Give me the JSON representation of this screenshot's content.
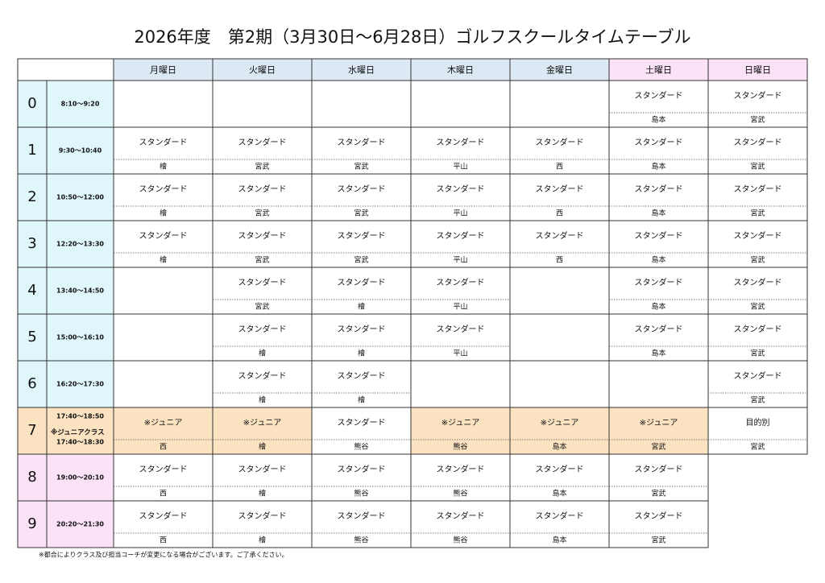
{
  "title": "2026年度　第2期（3月30日～6月28日）ゴルフスクールタイムテーブル",
  "days": [
    {
      "label": "月曜日",
      "color": "#dce9f5"
    },
    {
      "label": "火曜日",
      "color": "#dce9f5"
    },
    {
      "label": "水曜日",
      "color": "#dce9f5"
    },
    {
      "label": "木曜日",
      "color": "#dce9f5"
    },
    {
      "label": "金曜日",
      "color": "#dce9f5"
    },
    {
      "label": "土曜日",
      "color": "#fbe2f6"
    },
    {
      "label": "日曜日",
      "color": "#fbe2f6"
    }
  ],
  "rows": [
    {
      "period": "0",
      "time": "8:10～9:20",
      "color": "#dff6fb",
      "cells": [
        null,
        null,
        null,
        null,
        null,
        {
          "class": "スタンダード",
          "coach": "島本"
        },
        {
          "class": "スタンダード",
          "coach": "宮武"
        }
      ]
    },
    {
      "period": "1",
      "time": "9:30～10:40",
      "color": "#dff6fb",
      "cells": [
        {
          "class": "スタンダード",
          "coach": "檜"
        },
        {
          "class": "スタンダード",
          "coach": "宮武"
        },
        {
          "class": "スタンダード",
          "coach": "宮武"
        },
        {
          "class": "スタンダード",
          "coach": "平山"
        },
        {
          "class": "スタンダード",
          "coach": "西"
        },
        {
          "class": "スタンダード",
          "coach": "島本"
        },
        {
          "class": "スタンダード",
          "coach": "宮武"
        }
      ]
    },
    {
      "period": "2",
      "time": "10:50～12:00",
      "color": "#dff6fb",
      "cells": [
        {
          "class": "スタンダード",
          "coach": "檜"
        },
        {
          "class": "スタンダード",
          "coach": "宮武"
        },
        {
          "class": "スタンダード",
          "coach": "宮武"
        },
        {
          "class": "スタンダード",
          "coach": "平山"
        },
        {
          "class": "スタンダード",
          "coach": "西"
        },
        {
          "class": "スタンダード",
          "coach": "島本"
        },
        {
          "class": "スタンダード",
          "coach": "宮武"
        }
      ]
    },
    {
      "period": "3",
      "time": "12:20～13:30",
      "color": "#dff6fb",
      "cells": [
        {
          "class": "スタンダード",
          "coach": "檜"
        },
        {
          "class": "スタンダード",
          "coach": "宮武"
        },
        {
          "class": "スタンダード",
          "coach": "宮武"
        },
        {
          "class": "スタンダード",
          "coach": "平山"
        },
        {
          "class": "スタンダード",
          "coach": "西"
        },
        {
          "class": "スタンダード",
          "coach": "島本"
        },
        {
          "class": "スタンダード",
          "coach": "宮武"
        }
      ]
    },
    {
      "period": "4",
      "time": "13:40～14:50",
      "color": "#dff6fb",
      "cells": [
        null,
        {
          "class": "スタンダード",
          "coach": "宮武"
        },
        {
          "class": "スタンダード",
          "coach": "檜"
        },
        {
          "class": "スタンダード",
          "coach": "平山"
        },
        null,
        {
          "class": "スタンダード",
          "coach": "島本"
        },
        {
          "class": "スタンダード",
          "coach": "宮武"
        }
      ]
    },
    {
      "period": "5",
      "time": "15:00～16:10",
      "color": "#dff6fb",
      "cells": [
        null,
        {
          "class": "スタンダード",
          "coach": "檜"
        },
        {
          "class": "スタンダード",
          "coach": "檜"
        },
        {
          "class": "スタンダード",
          "coach": "平山"
        },
        null,
        {
          "class": "スタンダード",
          "coach": "島本"
        },
        {
          "class": "スタンダード",
          "coach": "宮武"
        }
      ]
    },
    {
      "period": "6",
      "time": "16:20～17:30",
      "color": "#dff6fb",
      "cells": [
        null,
        {
          "class": "スタンダード",
          "coach": "檜"
        },
        {
          "class": "スタンダード",
          "coach": "檜"
        },
        null,
        null,
        null,
        {
          "class": "スタンダード",
          "coach": "宮武"
        }
      ]
    },
    {
      "period": "7",
      "time": "17:40～18:50",
      "note": "※ジュニアクラス",
      "time2": "17:40～18:30",
      "color": "#fbe3c2",
      "cells": [
        {
          "class": "※ジュニア",
          "coach": "西",
          "color": "#fbe3c2"
        },
        {
          "class": "※ジュニア",
          "coach": "檜",
          "color": "#fbe3c2"
        },
        {
          "class": "スタンダード",
          "coach": "熊谷"
        },
        {
          "class": "※ジュニア",
          "coach": "熊谷",
          "color": "#fbe3c2"
        },
        {
          "class": "※ジュニア",
          "coach": "島本",
          "color": "#fbe3c2"
        },
        {
          "class": "※ジュニア",
          "coach": "宮武",
          "color": "#fbe3c2"
        },
        {
          "class": "目的別",
          "coach": "宮武"
        }
      ]
    },
    {
      "period": "8",
      "time": "19:00～20:10",
      "color": "#fbe2f6",
      "cells": [
        {
          "class": "スタンダード",
          "coach": "西"
        },
        {
          "class": "スタンダード",
          "coach": "檜"
        },
        {
          "class": "スタンダード",
          "coach": "熊谷"
        },
        {
          "class": "スタンダード",
          "coach": "熊谷"
        },
        {
          "class": "スタンダード",
          "coach": "島本"
        },
        {
          "class": "スタンダード",
          "coach": "宮武"
        }
      ]
    },
    {
      "period": "9",
      "time": "20:20～21:30",
      "color": "#fbe2f6",
      "cells": [
        {
          "class": "スタンダード",
          "coach": "西"
        },
        {
          "class": "スタンダード",
          "coach": "檜"
        },
        {
          "class": "スタンダード",
          "coach": "熊谷"
        },
        {
          "class": "スタンダード",
          "coach": "熊谷"
        },
        {
          "class": "スタンダード",
          "coach": "島本"
        },
        {
          "class": "スタンダード",
          "coach": "宮武"
        }
      ]
    }
  ],
  "footnote": "※都合によりクラス及び担当コーチが変更になる場合がございます。ご了承ください。"
}
